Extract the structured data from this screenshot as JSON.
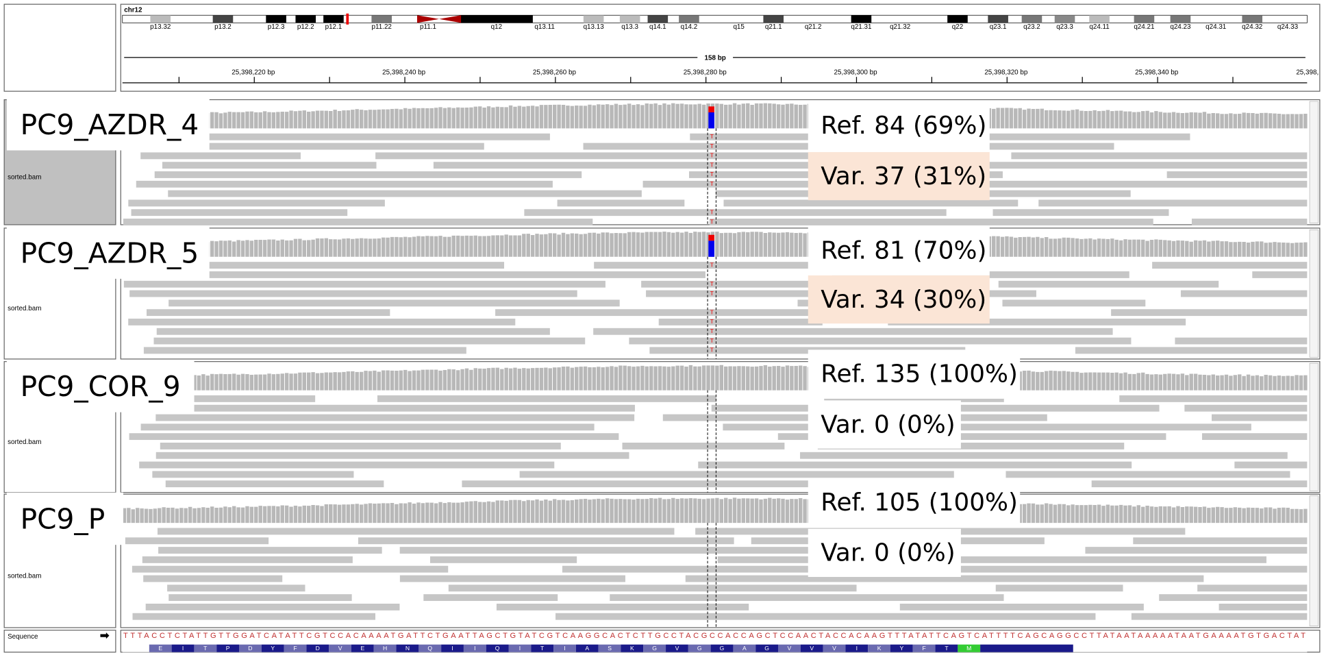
{
  "ideogram": {
    "chrom": "chr12",
    "bands": [
      "p13.32",
      "p13.2",
      "p12.3",
      "p12.2",
      "p12.1",
      "p11.22",
      "p11.1",
      "q12",
      "q13.11",
      "q13.13",
      "q13.3",
      "q14.1",
      "q14.2",
      "q15",
      "q21.1",
      "q21.2",
      "q21.31",
      "q21.32",
      "q22",
      "q23.1",
      "q23.2",
      "q23.3",
      "q24.11",
      "q24.21",
      "q24.23",
      "q24.31",
      "q24.32",
      "q24.33"
    ]
  },
  "ruler": {
    "span": "158 bp",
    "ticks": [
      "25,398,220 bp",
      "25,398,240 bp",
      "25,398,260 bp",
      "25,398,280 bp",
      "25,398,300 bp",
      "25,398,320 bp",
      "25,398,340 bp",
      "25,398,"
    ]
  },
  "tracks": [
    {
      "sample": "PC9_AZDR_4",
      "file": "sorted.bam",
      "ref": "Ref. 84 (69%)",
      "var": "Var. 37 (31%)",
      "var_highlight": true
    },
    {
      "sample": "PC9_AZDR_5",
      "file": "sorted.bam",
      "ref": "Ref. 81 (70%)",
      "var": "Var. 34 (30%)",
      "var_highlight": true
    },
    {
      "sample": "PC9_COR_9",
      "file": "sorted.bam",
      "ref": "Ref. 135 (100%)",
      "var": "Var. 0 (0%)",
      "var_highlight": false
    },
    {
      "sample": "PC9_P",
      "file": "sorted.bam",
      "ref": "Ref. 105 (100%)",
      "var": "Var. 0 (0%)",
      "var_highlight": false
    }
  ],
  "sequence": {
    "label": "Sequence",
    "bases": "TTTACCTCTATTGTTGGATCATATTCGTCCACAAAATGATTCTGAATTAGCTGTATCGTCAAGGCACTCTTGCCTACGCCACCAGCTCCAACTACCACAAGTTTATATTCAGTCATTTTCAGCAGGCCTTATAATAAAAATAATGAAAATGTGACTAT",
    "amino_acids": [
      "E",
      "I",
      "T",
      "P",
      "D",
      "Y",
      "F",
      "D",
      "V",
      "E",
      "H",
      "N",
      "Q",
      "I",
      "I",
      "Q",
      "I",
      "T",
      "I",
      "A",
      "S",
      "K",
      "G",
      "V",
      "G",
      "G",
      "A",
      "G",
      "V",
      "V",
      "V",
      "I",
      "K",
      "Y",
      "F",
      "T",
      "M"
    ]
  }
}
